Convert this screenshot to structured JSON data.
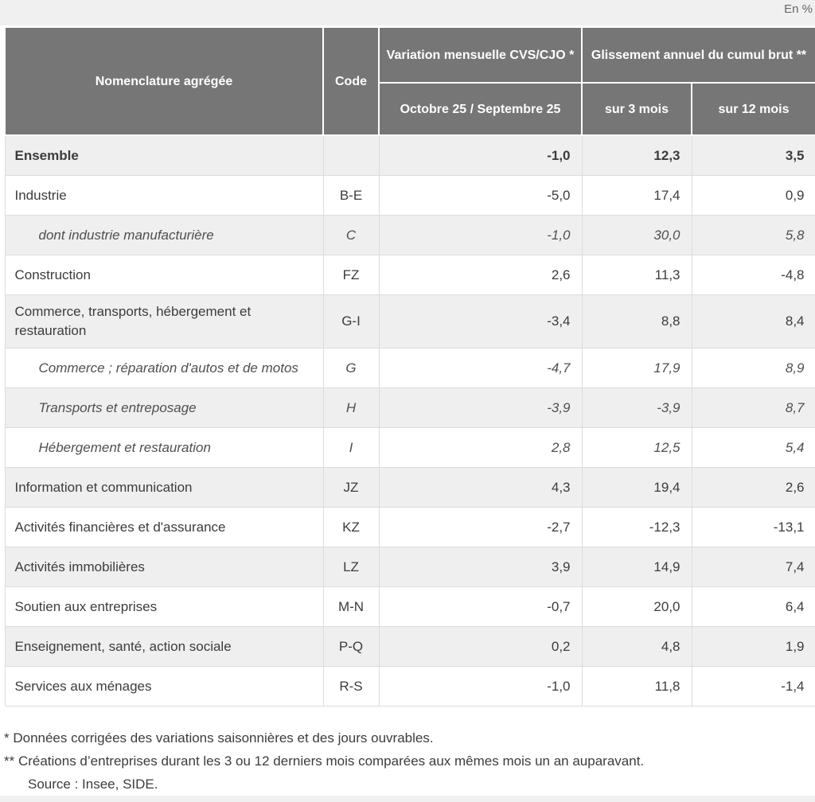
{
  "unit_label": "En %",
  "table": {
    "header": {
      "nomenclature": "Nomenclature agrégée",
      "code": "Code",
      "variation_group": "Variation mensuelle CVS/CJO *",
      "variation_period": "Octobre 25 / Septembre 25",
      "glissement_group": "Glissement annuel du cumul brut **",
      "sub_3m": "sur 3 mois",
      "sub_12m": "sur 12 mois"
    },
    "rows": [
      {
        "label": "Ensemble",
        "code": "",
        "monthly": "-1,0",
        "cum3": "12,3",
        "cum12": "3,5"
      },
      {
        "label": "Industrie",
        "code": "B-E",
        "monthly": "-5,0",
        "cum3": "17,4",
        "cum12": "0,9"
      },
      {
        "label": "dont industrie manufacturière",
        "code": "C",
        "monthly": "-1,0",
        "cum3": "30,0",
        "cum12": "5,8"
      },
      {
        "label": "Construction",
        "code": "FZ",
        "monthly": "2,6",
        "cum3": "11,3",
        "cum12": "-4,8"
      },
      {
        "label": "Commerce, transports, hébergement et restauration",
        "code": "G-I",
        "monthly": "-3,4",
        "cum3": "8,8",
        "cum12": "8,4"
      },
      {
        "label": "Commerce ; réparation d'autos et de motos",
        "code": "G",
        "monthly": "-4,7",
        "cum3": "17,9",
        "cum12": "8,9"
      },
      {
        "label": "Transports et entreposage",
        "code": "H",
        "monthly": "-3,9",
        "cum3": "-3,9",
        "cum12": "8,7"
      },
      {
        "label": "Hébergement et restauration",
        "code": "I",
        "monthly": "2,8",
        "cum3": "12,5",
        "cum12": "5,4"
      },
      {
        "label": "Information et communication",
        "code": "JZ",
        "monthly": "4,3",
        "cum3": "19,4",
        "cum12": "2,6"
      },
      {
        "label": "Activités financières et d'assurance",
        "code": "KZ",
        "monthly": "-2,7",
        "cum3": "-12,3",
        "cum12": "-13,1"
      },
      {
        "label": "Activités immobilières",
        "code": "LZ",
        "monthly": "3,9",
        "cum3": "14,9",
        "cum12": "7,4"
      },
      {
        "label": "Soutien aux entreprises",
        "code": "M-N",
        "monthly": "-0,7",
        "cum3": "20,0",
        "cum12": "6,4"
      },
      {
        "label": "Enseignement, santé, action sociale",
        "code": "P-Q",
        "monthly": "0,2",
        "cum3": "4,8",
        "cum12": "1,9"
      },
      {
        "label": "Services aux ménages",
        "code": "R-S",
        "monthly": "-1,0",
        "cum3": "11,8",
        "cum12": "-1,4"
      }
    ]
  },
  "footnotes": {
    "note1": "* Données corrigées des variations saisonnières et des jours ouvrables.",
    "note2": "** Créations d’entreprises durant les 3 ou 12 derniers mois comparées aux mêmes mois un an auparavant.",
    "source": "Source : Insee, SIDE."
  },
  "colors": {
    "header_bg": "#767676",
    "row_shaded": "#efefef",
    "border": "#dcdcdc",
    "page_bg": "#f0f0f0"
  }
}
